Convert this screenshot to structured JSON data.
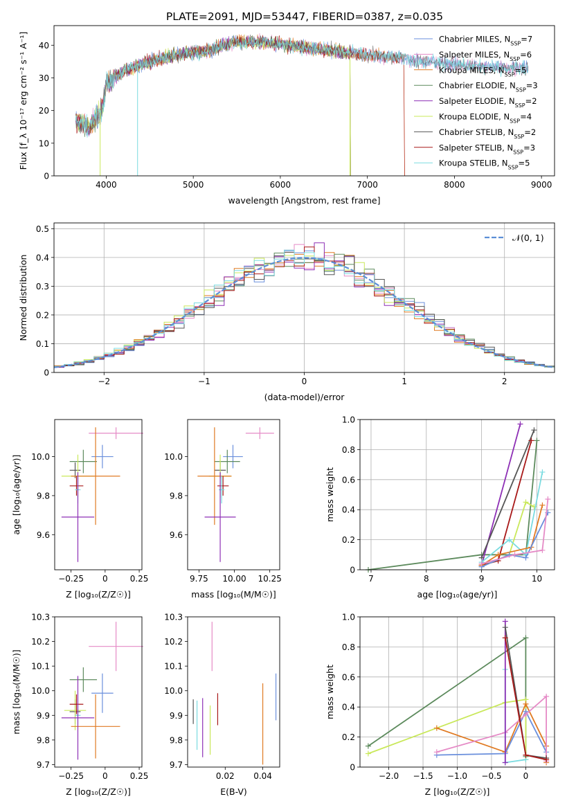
{
  "title": "PLATE=2091, MJD=53447, FIBERID=0387, z=0.035",
  "colors": {
    "Chabrier MILES": "#6a8fdc",
    "Salpeter MILES": "#e58ac6",
    "Kroupa MILES": "#e07a22",
    "Chabrier ELODIE": "#5c8a5c",
    "Salpeter ELODIE": "#8d2fb5",
    "Kroupa ELODIE": "#c9e85a",
    "Chabrier STELIB": "#555555",
    "Salpeter STELIB": "#a81818",
    "Kroupa STELIB": "#7adbe0",
    "normal": "#5b8ed6"
  },
  "chart_data": [
    {
      "id": "spectrum",
      "type": "line",
      "xlabel": "wavelength [Angstrom, rest frame]",
      "ylabel": "Flux [f_λ 10⁻¹⁷ erg cm⁻² s⁻¹ A⁻¹]",
      "xlim": [
        3400,
        9150
      ],
      "ylim": [
        0,
        46
      ],
      "xticks": [
        4000,
        5000,
        6000,
        7000,
        8000,
        9000
      ],
      "yticks": [
        0,
        10,
        20,
        30,
        40
      ],
      "legend": "top-right",
      "legend_entries": [
        {
          "model": "Chabrier MILES",
          "n": "7"
        },
        {
          "model": "Salpeter MILES",
          "n": "6"
        },
        {
          "model": "Kroupa MILES",
          "n": "5"
        },
        {
          "model": "Chabrier ELODIE",
          "n": "3"
        },
        {
          "model": "Salpeter ELODIE",
          "n": "2"
        },
        {
          "model": "Kroupa ELODIE",
          "n": "4"
        },
        {
          "model": "Chabrier STELIB",
          "n": "2"
        },
        {
          "model": "Salpeter STELIB",
          "n": "3"
        },
        {
          "model": "Kroupa STELIB",
          "n": "5"
        }
      ],
      "continuum": [
        [
          3650,
          17
        ],
        [
          3800,
          15
        ],
        [
          3950,
          20
        ],
        [
          4000,
          28
        ],
        [
          4200,
          32
        ],
        [
          4500,
          35
        ],
        [
          4800,
          37
        ],
        [
          5100,
          38
        ],
        [
          5500,
          41
        ],
        [
          5800,
          41
        ],
        [
          6100,
          40
        ],
        [
          6400,
          39
        ],
        [
          6700,
          38
        ],
        [
          7000,
          37
        ],
        [
          7400,
          36
        ],
        [
          7700,
          35
        ],
        [
          8000,
          34
        ],
        [
          8300,
          33.5
        ],
        [
          8600,
          33
        ],
        [
          8850,
          33
        ]
      ]
    },
    {
      "id": "residuals",
      "type": "line",
      "xlabel": "(data-model)/error",
      "ylabel": "Normed distribution",
      "xlim": [
        -2.5,
        2.5
      ],
      "ylim": [
        0,
        0.52
      ],
      "xticks": [
        -2,
        -1,
        0,
        1,
        2
      ],
      "yticks": [
        0.0,
        0.1,
        0.2,
        0.3,
        0.4,
        0.5
      ],
      "grid": true,
      "legend": "top-right",
      "legend_label": "𝒩(0, 1)",
      "hist_bin_width": 0.1
    },
    {
      "id": "Z-age",
      "type": "scatter",
      "xlabel": "Z [log₁₀(Z/Z☉)]",
      "ylabel": "age  [log₁₀(age/yr)]",
      "xlim": [
        -0.37,
        0.27
      ],
      "ylim": [
        9.42,
        10.19
      ],
      "xticks": [
        -0.25,
        0.0,
        0.25
      ],
      "yticks": [
        9.6,
        9.8,
        10.0
      ],
      "points": [
        {
          "m": "Salpeter MILES",
          "x": 0.08,
          "xe": 0.2,
          "y": 10.12,
          "ye": 0.03
        },
        {
          "m": "Chabrier MILES",
          "x": -0.02,
          "xe": 0.08,
          "y": 10.0,
          "ye": 0.06
        },
        {
          "m": "Chabrier ELODIE",
          "x": -0.16,
          "xe": 0.1,
          "y": 9.975,
          "ye": 0.06
        },
        {
          "m": "Chabrier STELIB",
          "x": -0.22,
          "xe": 0.04,
          "y": 9.93,
          "ye": 0.04
        },
        {
          "m": "Kroupa ELODIE",
          "x": -0.2,
          "xe": 0.12,
          "y": 9.9,
          "ye": 0.11
        },
        {
          "m": "Kroupa MILES",
          "x": -0.07,
          "xe": 0.18,
          "y": 9.9,
          "ye": 0.25
        },
        {
          "m": "Salpeter STELIB",
          "x": -0.21,
          "xe": 0.05,
          "y": 9.85,
          "ye": 0.05
        },
        {
          "m": "Kroupa STELIB",
          "x": -0.2,
          "xe": 0.02,
          "y": 9.83,
          "ye": 0.07
        },
        {
          "m": "Salpeter ELODIE",
          "x": -0.2,
          "xe": 0.12,
          "y": 9.69,
          "ye": 0.23
        }
      ]
    },
    {
      "id": "mass-age",
      "type": "scatter",
      "xlabel": "mass [log₁₀(M/M☉)]",
      "xlim": [
        9.67,
        10.32
      ],
      "ylim": [
        9.42,
        10.19
      ],
      "xticks": [
        9.75,
        10.0,
        10.25
      ],
      "yticks": [
        9.6,
        9.8,
        10.0
      ],
      "points": [
        {
          "m": "Salpeter MILES",
          "x": 10.18,
          "xe": 0.1,
          "y": 10.12,
          "ye": 0.03
        },
        {
          "m": "Chabrier MILES",
          "x": 9.99,
          "xe": 0.07,
          "y": 10.0,
          "ye": 0.06
        },
        {
          "m": "Chabrier ELODIE",
          "x": 9.95,
          "xe": 0.09,
          "y": 9.975,
          "ye": 0.06
        },
        {
          "m": "Chabrier STELIB",
          "x": 9.9,
          "xe": 0.04,
          "y": 9.93,
          "ye": 0.04
        },
        {
          "m": "Kroupa ELODIE",
          "x": 9.9,
          "xe": 0.08,
          "y": 9.9,
          "ye": 0.11
        },
        {
          "m": "Kroupa MILES",
          "x": 9.86,
          "xe": 0.12,
          "y": 9.9,
          "ye": 0.25
        },
        {
          "m": "Salpeter STELIB",
          "x": 9.92,
          "xe": 0.04,
          "y": 9.85,
          "ye": 0.05
        },
        {
          "m": "Kroupa STELIB",
          "x": 9.91,
          "xe": 0.02,
          "y": 9.83,
          "ye": 0.07
        },
        {
          "m": "Salpeter ELODIE",
          "x": 9.9,
          "xe": 0.11,
          "y": 9.69,
          "ye": 0.23
        }
      ]
    },
    {
      "id": "weight-age",
      "type": "line",
      "xlabel": "age  [log₁₀(age/yr)]",
      "ylabel": "mass weight",
      "xlim": [
        6.8,
        10.32
      ],
      "ylim": [
        0,
        1.0
      ],
      "xticks": [
        7,
        8,
        9,
        10
      ],
      "yticks": [
        0.0,
        0.2,
        0.4,
        0.6,
        0.8,
        1.0
      ],
      "grid": true,
      "series": [
        {
          "m": "Chabrier ELODIE",
          "pts": [
            [
              6.95,
              0.0
            ],
            [
              9.0,
              0.1
            ],
            [
              9.8,
              0.1
            ],
            [
              10.0,
              0.86
            ]
          ]
        },
        {
          "m": "Salpeter ELODIE",
          "pts": [
            [
              9.0,
              0.03
            ],
            [
              9.7,
              0.97
            ]
          ]
        },
        {
          "m": "Chabrier STELIB",
          "pts": [
            [
              9.0,
              0.08
            ],
            [
              9.95,
              0.93
            ]
          ]
        },
        {
          "m": "Salpeter STELIB",
          "pts": [
            [
              9.0,
              0.03
            ],
            [
              9.3,
              0.06
            ],
            [
              9.9,
              0.86
            ]
          ]
        },
        {
          "m": "Kroupa ELODIE",
          "pts": [
            [
              9.0,
              0.02
            ],
            [
              9.5,
              0.1
            ],
            [
              9.8,
              0.45
            ],
            [
              9.95,
              0.42
            ]
          ]
        },
        {
          "m": "Kroupa STELIB",
          "pts": [
            [
              9.0,
              0.05
            ],
            [
              9.5,
              0.2
            ],
            [
              9.8,
              0.1
            ],
            [
              10.1,
              0.65
            ]
          ]
        },
        {
          "m": "Kroupa MILES",
          "pts": [
            [
              9.0,
              0.03
            ],
            [
              9.3,
              0.1
            ],
            [
              9.9,
              0.15
            ],
            [
              10.1,
              0.43
            ]
          ]
        },
        {
          "m": "Chabrier MILES",
          "pts": [
            [
              9.0,
              0.02
            ],
            [
              9.5,
              0.1
            ],
            [
              9.8,
              0.08
            ],
            [
              10.2,
              0.38
            ]
          ]
        },
        {
          "m": "Salpeter MILES",
          "pts": [
            [
              9.0,
              0.04
            ],
            [
              9.6,
              0.1
            ],
            [
              10.1,
              0.13
            ],
            [
              10.2,
              0.47
            ]
          ]
        }
      ]
    },
    {
      "id": "Z-mass",
      "type": "scatter",
      "xlabel": "Z [log₁₀(Z/Z☉)]",
      "ylabel": "mass [log₁₀(M/M☉)]",
      "xlim": [
        -0.37,
        0.27
      ],
      "ylim": [
        9.69,
        10.3
      ],
      "xticks": [
        -0.25,
        0.0,
        0.25
      ],
      "yticks": [
        9.7,
        9.8,
        9.9,
        10.0,
        10.1,
        10.2,
        10.3
      ],
      "points": [
        {
          "m": "Salpeter MILES",
          "x": 0.08,
          "xe": 0.2,
          "y": 10.18,
          "ye": 0.1
        },
        {
          "m": "Chabrier MILES",
          "x": -0.02,
          "xe": 0.08,
          "y": 9.99,
          "ye": 0.08
        },
        {
          "m": "Chabrier ELODIE",
          "x": -0.16,
          "xe": 0.1,
          "y": 10.045,
          "ye": 0.05
        },
        {
          "m": "Chabrier STELIB",
          "x": -0.22,
          "xe": 0.04,
          "y": 9.915,
          "ye": 0.05
        },
        {
          "m": "Kroupa ELODIE",
          "x": -0.22,
          "xe": 0.08,
          "y": 9.92,
          "ye": 0.08
        },
        {
          "m": "Kroupa MILES",
          "x": -0.07,
          "xe": 0.18,
          "y": 9.855,
          "ye": 0.13
        },
        {
          "m": "Salpeter STELIB",
          "x": -0.21,
          "xe": 0.05,
          "y": 9.945,
          "ye": 0.04
        },
        {
          "m": "Kroupa STELIB",
          "x": -0.2,
          "xe": 0.02,
          "y": 9.9,
          "ye": 0.04
        },
        {
          "m": "Salpeter ELODIE",
          "x": -0.2,
          "xe": 0.12,
          "y": 9.89,
          "ye": 0.17
        }
      ]
    },
    {
      "id": "EBV-mass",
      "type": "scatter",
      "xlabel": "E(B-V)",
      "xlim": [
        0.0,
        0.049
      ],
      "ylim": [
        9.69,
        10.3
      ],
      "xticks": [
        0.02,
        0.04
      ],
      "yticks": [
        9.7,
        9.8,
        9.9,
        10.0,
        10.1,
        10.2,
        10.3
      ],
      "points": [
        {
          "m": "Chabrier STELIB",
          "x": 0.003,
          "xe": 0,
          "y": 9.915,
          "ye": 0.05
        },
        {
          "m": "Kroupa STELIB",
          "x": 0.005,
          "xe": 0,
          "y": 9.86,
          "ye": 0.1
        },
        {
          "m": "Salpeter ELODIE",
          "x": 0.008,
          "xe": 0,
          "y": 9.85,
          "ye": 0.12
        },
        {
          "m": "Kroupa ELODIE",
          "x": 0.012,
          "xe": 0,
          "y": 9.84,
          "ye": 0.1
        },
        {
          "m": "Salpeter MILES",
          "x": 0.013,
          "xe": 0,
          "y": 10.18,
          "ye": 0.1
        },
        {
          "m": "Salpeter STELIB",
          "x": 0.016,
          "xe": 0,
          "y": 9.925,
          "ye": 0.065
        },
        {
          "m": "Kroupa MILES",
          "x": 0.04,
          "xe": 0,
          "y": 9.865,
          "ye": 0.165
        },
        {
          "m": "Chabrier MILES",
          "x": 0.047,
          "xe": 0,
          "y": 9.975,
          "ye": 0.095
        }
      ]
    },
    {
      "id": "weight-Z",
      "type": "line",
      "xlabel": "Z [log₁₀(Z/Z☉)]",
      "ylabel": "mass weight",
      "xlim": [
        -2.42,
        0.42
      ],
      "ylim": [
        0,
        1.0
      ],
      "xticks": [
        -2.0,
        -1.5,
        -1.0,
        -0.5,
        0.0
      ],
      "yticks": [
        0.0,
        0.2,
        0.4,
        0.6,
        0.8,
        1.0
      ],
      "grid": true,
      "series": [
        {
          "m": "Chabrier ELODIE",
          "pts": [
            [
              -2.3,
              0.14
            ],
            [
              0.0,
              0.86
            ],
            [
              0.0,
              0.07
            ]
          ]
        },
        {
          "m": "Kroupa ELODIE",
          "pts": [
            [
              -2.3,
              0.09
            ],
            [
              -0.3,
              0.43
            ],
            [
              0.0,
              0.45
            ],
            [
              0.0,
              0.05
            ]
          ]
        },
        {
          "m": "Kroupa MILES",
          "pts": [
            [
              -1.3,
              0.26
            ],
            [
              -0.3,
              0.1
            ],
            [
              0.0,
              0.42
            ],
            [
              0.3,
              0.14
            ],
            [
              0.3,
              0.03
            ]
          ]
        },
        {
          "m": "Chabrier MILES",
          "pts": [
            [
              -1.3,
              0.08
            ],
            [
              -0.3,
              0.09
            ],
            [
              0.0,
              0.37
            ],
            [
              0.3,
              0.1
            ]
          ]
        },
        {
          "m": "Salpeter MILES",
          "pts": [
            [
              -1.3,
              0.1
            ],
            [
              -0.3,
              0.23
            ],
            [
              0.0,
              0.35
            ],
            [
              0.3,
              0.47
            ],
            [
              0.3,
              0.04
            ]
          ]
        },
        {
          "m": "Kroupa STELIB",
          "pts": [
            [
              -0.3,
              0.65
            ],
            [
              -0.3,
              0.03
            ],
            [
              0.0,
              0.05
            ]
          ]
        },
        {
          "m": "Salpeter ELODIE",
          "pts": [
            [
              -0.3,
              0.97
            ],
            [
              -0.3,
              0.03
            ]
          ]
        },
        {
          "m": "Chabrier STELIB",
          "pts": [
            [
              -0.3,
              0.93
            ],
            [
              0.0,
              0.08
            ],
            [
              0.3,
              0.06
            ]
          ]
        },
        {
          "m": "Salpeter STELIB",
          "pts": [
            [
              -0.3,
              0.86
            ],
            [
              0.0,
              0.08
            ],
            [
              0.3,
              0.05
            ]
          ]
        }
      ]
    }
  ]
}
